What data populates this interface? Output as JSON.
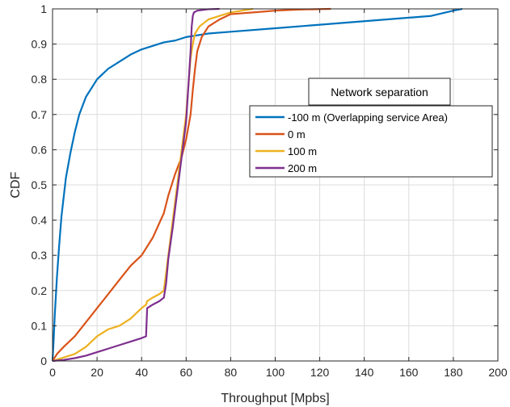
{
  "chart_data": {
    "type": "line",
    "xlabel": "Throughput [Mpbs]",
    "ylabel": "CDF",
    "xlim": [
      0,
      200
    ],
    "ylim": [
      0,
      1
    ],
    "xticks": [
      0,
      20,
      40,
      60,
      80,
      100,
      120,
      140,
      160,
      180,
      200
    ],
    "yticks": [
      0,
      0.1,
      0.2,
      0.3,
      0.4,
      0.5,
      0.6,
      0.7,
      0.8,
      0.9,
      1
    ],
    "grid": true,
    "legend": {
      "title": "Network separation",
      "placement": "right",
      "entries": [
        "-100 m (Overlapping service Area)",
        "0 m",
        "100 m",
        "200 m"
      ]
    },
    "series": [
      {
        "name": "-100 m (Overlapping service Area)",
        "color": "#0072BD",
        "x": [
          0,
          0.5,
          1,
          2,
          3,
          4,
          6,
          8,
          10,
          12,
          15,
          18,
          20,
          25,
          30,
          35,
          40,
          45,
          50,
          55,
          60,
          70,
          80,
          100,
          120,
          140,
          160,
          170,
          180,
          184
        ],
        "y": [
          0,
          0.06,
          0.13,
          0.24,
          0.33,
          0.41,
          0.52,
          0.59,
          0.65,
          0.7,
          0.75,
          0.78,
          0.8,
          0.83,
          0.85,
          0.87,
          0.885,
          0.895,
          0.905,
          0.91,
          0.92,
          0.93,
          0.935,
          0.945,
          0.955,
          0.965,
          0.975,
          0.98,
          0.995,
          1.0
        ]
      },
      {
        "name": "0 m",
        "color": "#D95319",
        "x": [
          0,
          2,
          5,
          10,
          15,
          20,
          25,
          30,
          35,
          40,
          45,
          50,
          52,
          55,
          58,
          60,
          62,
          63,
          64,
          65,
          67,
          70,
          75,
          80,
          90,
          100,
          110,
          125
        ],
        "y": [
          0,
          0.02,
          0.04,
          0.07,
          0.11,
          0.15,
          0.19,
          0.23,
          0.27,
          0.3,
          0.35,
          0.42,
          0.47,
          0.53,
          0.58,
          0.63,
          0.7,
          0.77,
          0.83,
          0.88,
          0.92,
          0.95,
          0.97,
          0.985,
          0.99,
          0.995,
          0.998,
          1.0
        ]
      },
      {
        "name": "100 m",
        "color": "#EDB120",
        "x": [
          0,
          5,
          10,
          15,
          20,
          25,
          30,
          35,
          40,
          42,
          42.5,
          45,
          48,
          50,
          52,
          54,
          56,
          58,
          60,
          61,
          62,
          63,
          64,
          66,
          68,
          70,
          75,
          80,
          85,
          90
        ],
        "y": [
          0,
          0.01,
          0.02,
          0.04,
          0.07,
          0.09,
          0.1,
          0.12,
          0.15,
          0.16,
          0.17,
          0.18,
          0.19,
          0.2,
          0.3,
          0.4,
          0.5,
          0.6,
          0.7,
          0.78,
          0.86,
          0.9,
          0.93,
          0.95,
          0.96,
          0.97,
          0.98,
          0.99,
          0.995,
          1.0
        ]
      },
      {
        "name": "200 m",
        "color": "#7E2F8E",
        "x": [
          0,
          5,
          10,
          15,
          20,
          25,
          30,
          35,
          40,
          42,
          42.5,
          45,
          48,
          50,
          51,
          52,
          54,
          56,
          58,
          60,
          61,
          62,
          62.5,
          63,
          63.5,
          65,
          70,
          75
        ],
        "y": [
          0,
          0.003,
          0.008,
          0.015,
          0.025,
          0.035,
          0.045,
          0.055,
          0.065,
          0.07,
          0.15,
          0.16,
          0.17,
          0.18,
          0.22,
          0.29,
          0.38,
          0.48,
          0.58,
          0.68,
          0.78,
          0.88,
          0.95,
          0.98,
          0.99,
          0.995,
          0.999,
          1.0
        ]
      }
    ]
  }
}
